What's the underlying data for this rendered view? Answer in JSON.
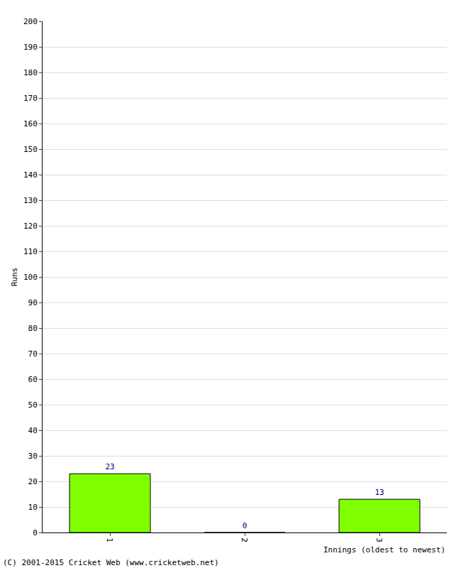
{
  "chart_data": {
    "type": "bar",
    "x_label": "Innings (oldest to newest)",
    "y_label": "Runs",
    "categories": [
      "1",
      "2",
      "3"
    ],
    "values": [
      23,
      0,
      13
    ],
    "color": "#80ff00",
    "ylim": [
      0,
      200
    ],
    "yticks": [
      0,
      10,
      20,
      30,
      40,
      50,
      60,
      70,
      80,
      90,
      100,
      110,
      120,
      130,
      140,
      150,
      160,
      170,
      180,
      190,
      200
    ],
    "grid": true,
    "data_labels": true,
    "annotations": [
      "(C) 2001-2015 Cricket Web (www.cricketweb.net)"
    ]
  }
}
